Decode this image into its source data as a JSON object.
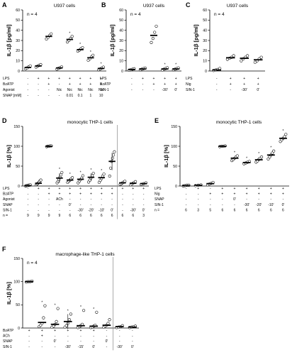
{
  "chart_data": [
    {
      "panel": "A",
      "type": "scatter",
      "title": "U937 cells",
      "n_label": "n = 4",
      "ylabel": "IL-1β [pg/ml]",
      "ylim": [
        0,
        60
      ],
      "yticks": [
        0,
        10,
        20,
        30,
        40,
        50,
        60
      ],
      "row_labels": [
        "LPS",
        "BzATP",
        "Agonist",
        "SNAP [mM]"
      ],
      "columns": [
        {
          "cells": [
            "-",
            "-",
            "-",
            "-"
          ],
          "mean": 3.5,
          "points": [
            2.2,
            3.0,
            4.1,
            5.0
          ]
        },
        {
          "cells": [
            "+",
            "-",
            "-",
            "-"
          ],
          "mean": 5.0,
          "points": [
            3.8,
            4.7,
            5.6,
            6.3
          ]
        },
        {
          "cells": [
            "+",
            "+",
            "-",
            "-"
          ],
          "mean": 34,
          "points": [
            31.5,
            33.0,
            35.0,
            36.5
          ]
        },
        {
          "cells": [
            "+",
            "-",
            "Nic",
            "-"
          ],
          "mean": 3.0,
          "points": [
            1.8,
            2.6,
            3.3,
            4.0
          ]
        },
        {
          "cells": [
            "+",
            "+",
            "Nic",
            "0.01"
          ],
          "mean": 31,
          "points": [
            28.5,
            30.0,
            32.0,
            34.0
          ],
          "star": true
        },
        {
          "cells": [
            "+",
            "+",
            "Nic",
            "0.1"
          ],
          "mean": 21,
          "points": [
            19.5,
            20.5,
            21.8,
            23.0
          ],
          "star": true
        },
        {
          "cells": [
            "+",
            "+",
            "Nic",
            "1"
          ],
          "mean": 13,
          "points": [
            10.5,
            12.0,
            14.0,
            15.5
          ],
          "star": true
        },
        {
          "cells": [
            "+",
            "+",
            "Nic",
            "10"
          ],
          "mean": 2.5,
          "points": [
            1.2,
            2.0,
            3.0,
            3.8
          ],
          "star": true
        }
      ]
    },
    {
      "panel": "B",
      "type": "scatter",
      "title": "U937 cells",
      "n_label": "n = 4",
      "ylabel": "IL-1β [pg/ml]",
      "ylim": [
        0,
        60
      ],
      "yticks": [
        0,
        10,
        20,
        30,
        40,
        50,
        60
      ],
      "row_labels": [
        "LPS",
        "BzATP",
        "SIN-1"
      ],
      "columns": [
        {
          "cells": [
            "-",
            "-",
            "-"
          ],
          "mean": 1.5,
          "points": [
            0.8,
            1.2,
            1.8,
            2.2
          ]
        },
        {
          "cells": [
            "+",
            "-",
            "-"
          ],
          "mean": 2.0,
          "points": [
            1.2,
            1.8,
            2.4,
            2.8
          ]
        },
        {
          "cells": [
            "+",
            "+",
            "-"
          ],
          "mean": 35,
          "points": [
            28.0,
            32.0,
            38.0,
            44.0
          ]
        },
        {
          "cells": [
            "+",
            "+",
            "-30'"
          ],
          "mean": 2.0,
          "points": [
            1.0,
            1.8,
            2.5,
            3.2
          ],
          "star": true
        },
        {
          "cells": [
            "+",
            "+",
            "0'"
          ],
          "mean": 2.0,
          "points": [
            1.2,
            1.8,
            2.4,
            3.0
          ],
          "star": true
        }
      ]
    },
    {
      "panel": "C",
      "type": "scatter",
      "title": "U937 cells",
      "n_label": "n = 4",
      "ylabel": "IL-1β [pg/ml]",
      "ylim": [
        0,
        60
      ],
      "yticks": [
        0,
        10,
        20,
        30,
        40,
        50,
        60
      ],
      "row_labels": [
        "LPS",
        "Nig",
        "SIN-1"
      ],
      "columns": [
        {
          "cells": [
            "-",
            "-",
            "-"
          ],
          "mean": 1.0,
          "points": [
            0.5,
            1.0,
            1.5,
            2.5
          ]
        },
        {
          "cells": [
            "+",
            "+",
            "-"
          ],
          "mean": 13,
          "points": [
            11.5,
            12.5,
            13.5,
            15.0
          ]
        },
        {
          "cells": [
            "+",
            "+",
            "-30'"
          ],
          "mean": 12.5,
          "points": [
            10.0,
            12.0,
            13.5,
            15.0
          ]
        },
        {
          "cells": [
            "+",
            "+",
            "0'"
          ],
          "mean": 11,
          "points": [
            8.5,
            10.0,
            12.0,
            13.5
          ]
        }
      ]
    },
    {
      "panel": "D",
      "type": "scatter",
      "title": "monocytic THP-1 cells",
      "ylabel": "IL-1β [%]",
      "ylim": [
        0,
        150
      ],
      "yticks": [
        0,
        50,
        100,
        150
      ],
      "row_labels": [
        "LPS",
        "BzATP",
        "Agonist",
        "SNAP",
        "SIN-1",
        "n ="
      ],
      "columns": [
        {
          "cells": [
            "-",
            "-",
            "-",
            "-",
            "-",
            "9"
          ],
          "mean": 1,
          "points": [
            0,
            1,
            1,
            2,
            2,
            3
          ]
        },
        {
          "cells": [
            "+",
            "-",
            "-",
            "-",
            "-",
            "9"
          ],
          "mean": 7,
          "points": [
            3,
            5,
            6,
            8,
            10,
            13,
            15
          ]
        },
        {
          "cells": [
            "+",
            "+",
            "-",
            "-",
            "-",
            "9"
          ],
          "mean": 100,
          "points": [
            99,
            100,
            100,
            101,
            101
          ]
        },
        {
          "cells": [
            "+",
            "+",
            "ACh",
            "-",
            "-",
            "9"
          ],
          "mean": 20,
          "points": [
            8,
            12,
            16,
            22,
            28,
            34
          ],
          "err": 12,
          "star": true
        },
        {
          "cells": [
            "+",
            "+",
            "-",
            "0'",
            "-",
            "6"
          ],
          "mean": 15,
          "points": [
            9,
            12,
            15,
            18,
            21
          ],
          "star": true
        },
        {
          "cells": [
            "+",
            "+",
            "-",
            "-",
            "-30'",
            "6"
          ],
          "mean": 17,
          "points": [
            8,
            12,
            16,
            20,
            26
          ],
          "star": true
        },
        {
          "cells": [
            "+",
            "+",
            "-",
            "-",
            "-20'",
            "6"
          ],
          "mean": 22,
          "points": [
            10,
            15,
            20,
            26,
            32
          ],
          "err": 10,
          "star": true
        },
        {
          "cells": [
            "+",
            "+",
            "-",
            "-",
            "-10'",
            "6"
          ],
          "mean": 21,
          "points": [
            9,
            14,
            19,
            25,
            30
          ],
          "star": true
        },
        {
          "cells": [
            "+",
            "+",
            "-",
            "-",
            "0'",
            "6"
          ],
          "mean": 62,
          "points": [
            25,
            45,
            62,
            70,
            78,
            86
          ],
          "err": 22
        },
        {
          "cells": [
            "+",
            "-",
            "-",
            "-",
            "-",
            "6"
          ],
          "mean": 8,
          "points": [
            4,
            6,
            8,
            10,
            12
          ]
        },
        {
          "cells": [
            "+",
            "-",
            "-",
            "-",
            "-30'",
            "6"
          ],
          "mean": 7,
          "points": [
            3,
            5,
            7,
            9,
            11
          ]
        },
        {
          "cells": [
            "+",
            "-",
            "-",
            "-",
            "0'",
            "3"
          ],
          "mean": 6,
          "points": [
            4,
            6,
            8
          ]
        }
      ],
      "separator_after": 8
    },
    {
      "panel": "E",
      "type": "scatter",
      "title": "monocytic THP-1 cells",
      "ylabel": "IL-1β [%]",
      "ylim": [
        0,
        150
      ],
      "yticks": [
        0,
        50,
        100,
        150
      ],
      "row_labels": [
        "LPS",
        "Nig",
        "SNAP",
        "SIN-1",
        "n ="
      ],
      "columns": [
        {
          "cells": [
            "-",
            "-",
            "-",
            "-",
            "6"
          ],
          "mean": 1,
          "points": [
            0,
            1,
            2,
            2
          ]
        },
        {
          "cells": [
            "+",
            "-",
            "-",
            "-",
            "3"
          ],
          "mean": 2,
          "points": [
            1,
            2,
            3
          ]
        },
        {
          "cells": [
            "-",
            "+",
            "-",
            "-",
            "5"
          ],
          "mean": 6,
          "points": [
            3,
            5,
            7,
            9
          ]
        },
        {
          "cells": [
            "+",
            "+",
            "-",
            "-",
            "6"
          ],
          "mean": 100,
          "points": [
            99,
            100,
            100,
            101
          ]
        },
        {
          "cells": [
            "+",
            "+",
            "0'",
            "-",
            "6"
          ],
          "mean": 70,
          "points": [
            64,
            67,
            70,
            73,
            76
          ],
          "star": true
        },
        {
          "cells": [
            "+",
            "+",
            "-",
            "-30'",
            "6"
          ],
          "mean": 59,
          "points": [
            56,
            58,
            60,
            62
          ],
          "star": true
        },
        {
          "cells": [
            "+",
            "+",
            "-",
            "-20'",
            "6"
          ],
          "mean": 66,
          "points": [
            60,
            63,
            67,
            70,
            73
          ],
          "star": true
        },
        {
          "cells": [
            "+",
            "+",
            "-",
            "-10'",
            "6"
          ],
          "mean": 78,
          "points": [
            68,
            73,
            78,
            83,
            88
          ],
          "star": true
        },
        {
          "cells": [
            "+",
            "+",
            "-",
            "0'",
            "6"
          ],
          "mean": 120,
          "points": [
            112,
            116,
            120,
            124,
            130
          ],
          "star": true
        }
      ]
    },
    {
      "panel": "F",
      "type": "scatter",
      "title": "macrophage-like THP-1 cells",
      "n_label": "n = 4",
      "ylabel": "IL-1β [%]",
      "ylim": [
        0,
        150
      ],
      "yticks": [
        0,
        50,
        100,
        150
      ],
      "row_labels": [
        "BzATP",
        "ACh",
        "SNAP",
        "SIN-1"
      ],
      "columns": [
        {
          "cells": [
            "+",
            "-",
            "-",
            "-"
          ],
          "mean": 100,
          "points": [
            99,
            100,
            100,
            101
          ]
        },
        {
          "cells": [
            "+",
            "+",
            "-",
            "-"
          ],
          "mean": 12,
          "points": [
            3,
            6,
            10,
            22,
            48
          ],
          "star": true
        },
        {
          "cells": [
            "+",
            "-",
            "0'",
            "-"
          ],
          "mean": 8,
          "points": [
            2,
            4,
            8,
            14,
            42
          ],
          "star": true
        },
        {
          "cells": [
            "+",
            "-",
            "-",
            "-30'"
          ],
          "mean": 14,
          "points": [
            2,
            5,
            10,
            18,
            30
          ],
          "err": 16,
          "star": true
        },
        {
          "cells": [
            "+",
            "-",
            "-",
            "-15'"
          ],
          "mean": 5,
          "points": [
            1,
            3,
            5,
            8,
            38
          ],
          "star": true
        },
        {
          "cells": [
            "+",
            "-",
            "-",
            "0'"
          ],
          "mean": 4,
          "points": [
            1,
            2,
            4,
            6,
            34
          ],
          "star": true
        },
        {
          "cells": [
            "-",
            "-",
            "0'",
            "-"
          ],
          "mean": 6,
          "points": [
            2,
            4,
            6,
            10,
            18
          ]
        },
        {
          "cells": [
            "-",
            "-",
            "-",
            "-30'"
          ],
          "mean": 3,
          "points": [
            1,
            2,
            3,
            5
          ]
        },
        {
          "cells": [
            "-",
            "-",
            "-",
            "0'"
          ],
          "mean": 2,
          "points": [
            1,
            2,
            3,
            4
          ]
        }
      ],
      "separator_after": 6
    }
  ]
}
